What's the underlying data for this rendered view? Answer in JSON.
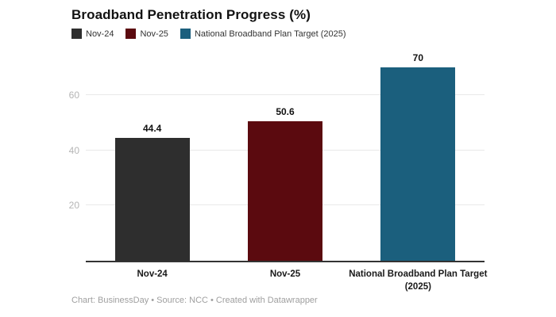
{
  "title": "Broadband Penetration Progress (%)",
  "footer": "Chart: BusinessDay • Source: NCC • Created with Datawrapper",
  "colors": {
    "nov24": "#2e2e2e",
    "nov25": "#5b0a0f",
    "target": "#1b5f7d",
    "axis": "#333333",
    "gridline": "#e9e9e9",
    "tick_text": "#b5b5b5"
  },
  "legend": [
    {
      "label": "Nov-24",
      "color": "#2e2e2e"
    },
    {
      "label": "Nov-25",
      "color": "#5b0a0f"
    },
    {
      "label": "National Broadband Plan Target (2025)",
      "color": "#1b5f7d"
    }
  ],
  "chart_data": {
    "type": "bar",
    "title": "Broadband Penetration Progress (%)",
    "categories": [
      "Nov-24",
      "Nov-25",
      "National Broadband Plan Target\n(2025)"
    ],
    "values": [
      44.4,
      50.6,
      70
    ],
    "value_labels": [
      "44.4",
      "50.6",
      "70"
    ],
    "bar_colors": [
      "#2e2e2e",
      "#5b0a0f",
      "#1b5f7d"
    ],
    "xlabel": "",
    "ylabel": "",
    "ylim": [
      0,
      72
    ],
    "yticks": [
      20,
      40,
      60
    ],
    "grid": "horizontal",
    "legend_position": "top-left"
  }
}
